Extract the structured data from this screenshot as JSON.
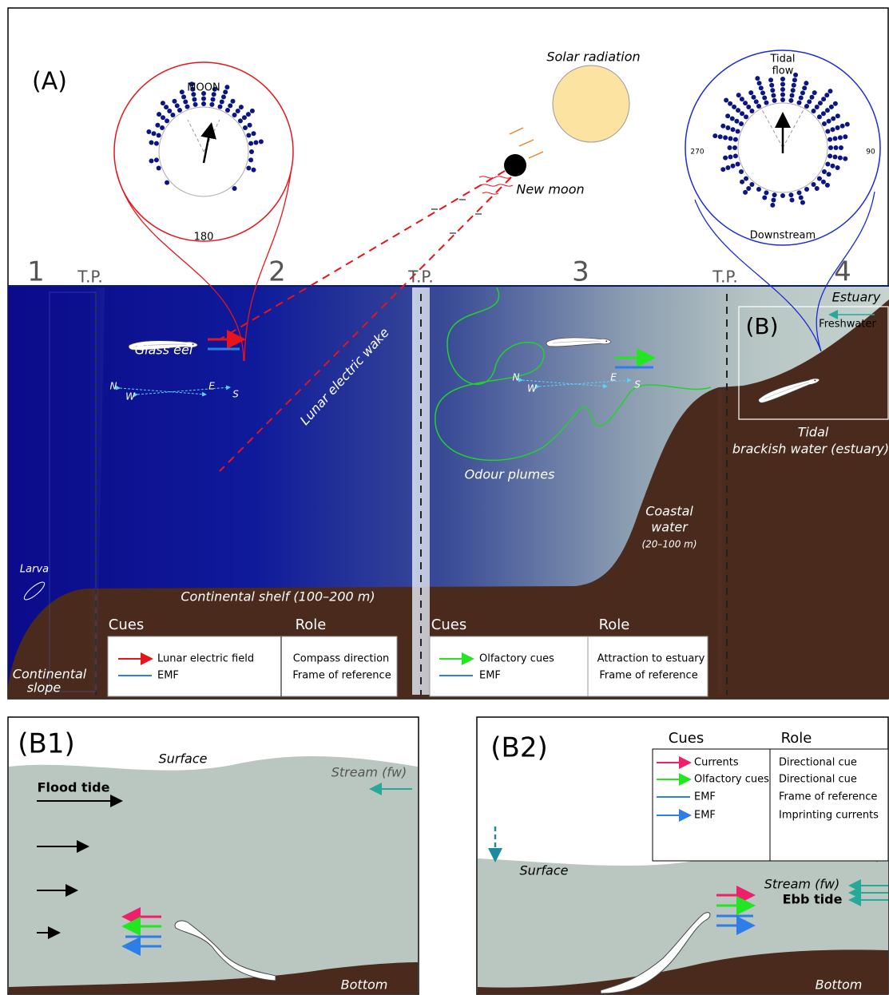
{
  "panel_a": {
    "label": "(A)",
    "moon_plot": {
      "top": "MOON",
      "bottom": "180"
    },
    "solar_radiation": "Solar radiation",
    "new_moon": "New moon",
    "tidal_plot": {
      "top": [
        "Tidal",
        "flow"
      ],
      "left": "270",
      "right": "90",
      "bottom": "Downstream"
    },
    "zones": [
      "1",
      "2",
      "3",
      "4"
    ],
    "transition_points": [
      "T.P.",
      "T.P.",
      "T.P."
    ],
    "estuary": "Estuary",
    "inset": "(B)",
    "freshwater": "Freshwater",
    "glass_eel": "Glass eel",
    "lunar_wake": "Lunar electric wake",
    "compass_1": {
      "n": "N",
      "e": "E",
      "w": "W",
      "s": "S"
    },
    "compass_2": {
      "n": "N",
      "e": "E",
      "w": "W",
      "s": "S"
    },
    "odour_plumes": "Odour plumes",
    "coastal_water": [
      "Coastal",
      "water"
    ],
    "coastal_depth": "(20–100 m)",
    "tidal_water": [
      "Tidal",
      "brackish water (estuary)"
    ],
    "larva": "Larva",
    "shelf": "Continental shelf (100–200 m)",
    "slope": [
      "Continental",
      "slope"
    ],
    "tables": [
      {
        "header": [
          "Cues",
          "Role"
        ],
        "rows": [
          [
            "Lunar electric field",
            "Compass direction"
          ],
          [
            "EMF",
            "Frame of reference"
          ]
        ]
      },
      {
        "header": [
          "Cues",
          "Role"
        ],
        "rows": [
          [
            "Olfactory cues",
            "Attraction to estuary"
          ],
          [
            "EMF",
            "Frame of reference"
          ]
        ]
      }
    ]
  },
  "panel_b1": {
    "label": "(B1)",
    "surface": "Surface",
    "stream": "Stream (fw)",
    "flood_tide": "Flood tide",
    "bottom": "Bottom"
  },
  "panel_b2": {
    "label": "(B2)",
    "table": {
      "header": [
        "Cues",
        "Role"
      ],
      "rows": [
        [
          "Currents",
          "Directional cue"
        ],
        [
          "Olfactory cues",
          "Directional cue"
        ],
        [
          "EMF",
          "Frame of reference"
        ],
        [
          "EMF",
          "Imprinting currents"
        ]
      ]
    },
    "surface": "Surface",
    "stream": "Stream (fw)",
    "ebb_tide": "Ebb tide",
    "bottom": "Bottom"
  }
}
